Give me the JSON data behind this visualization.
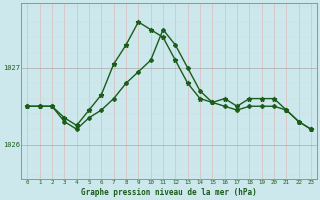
{
  "xlabel_label": "Graphe pression niveau de la mer (hPa)",
  "bg_color": "#cce8ec",
  "line_color": "#1a5c1a",
  "hours": [
    0,
    1,
    2,
    3,
    4,
    5,
    6,
    7,
    8,
    9,
    10,
    11,
    12,
    13,
    14,
    15,
    16,
    17,
    18,
    19,
    20,
    21,
    22,
    23
  ],
  "series1": [
    1026.5,
    1026.5,
    1026.5,
    1026.35,
    1026.25,
    1026.45,
    1026.65,
    1027.05,
    1027.3,
    1027.6,
    1027.5,
    1027.4,
    1027.1,
    1026.8,
    1026.6,
    1026.55,
    1026.6,
    1026.5,
    1026.6,
    1026.6,
    1026.6,
    1026.45,
    1026.3,
    1026.2
  ],
  "series2": [
    1026.5,
    1026.5,
    1026.5,
    1026.3,
    1026.2,
    1026.35,
    1026.45,
    1026.6,
    1026.8,
    1026.95,
    1027.1,
    1027.5,
    1027.3,
    1027.0,
    1026.7,
    1026.55,
    1026.5,
    1026.45,
    1026.5,
    1026.5,
    1026.5,
    1026.45,
    1026.3,
    1026.2
  ],
  "ylim_min": 1025.55,
  "ylim_max": 1027.85,
  "yticks": [
    1026,
    1027
  ],
  "xlim_min": 0,
  "xlim_max": 23
}
